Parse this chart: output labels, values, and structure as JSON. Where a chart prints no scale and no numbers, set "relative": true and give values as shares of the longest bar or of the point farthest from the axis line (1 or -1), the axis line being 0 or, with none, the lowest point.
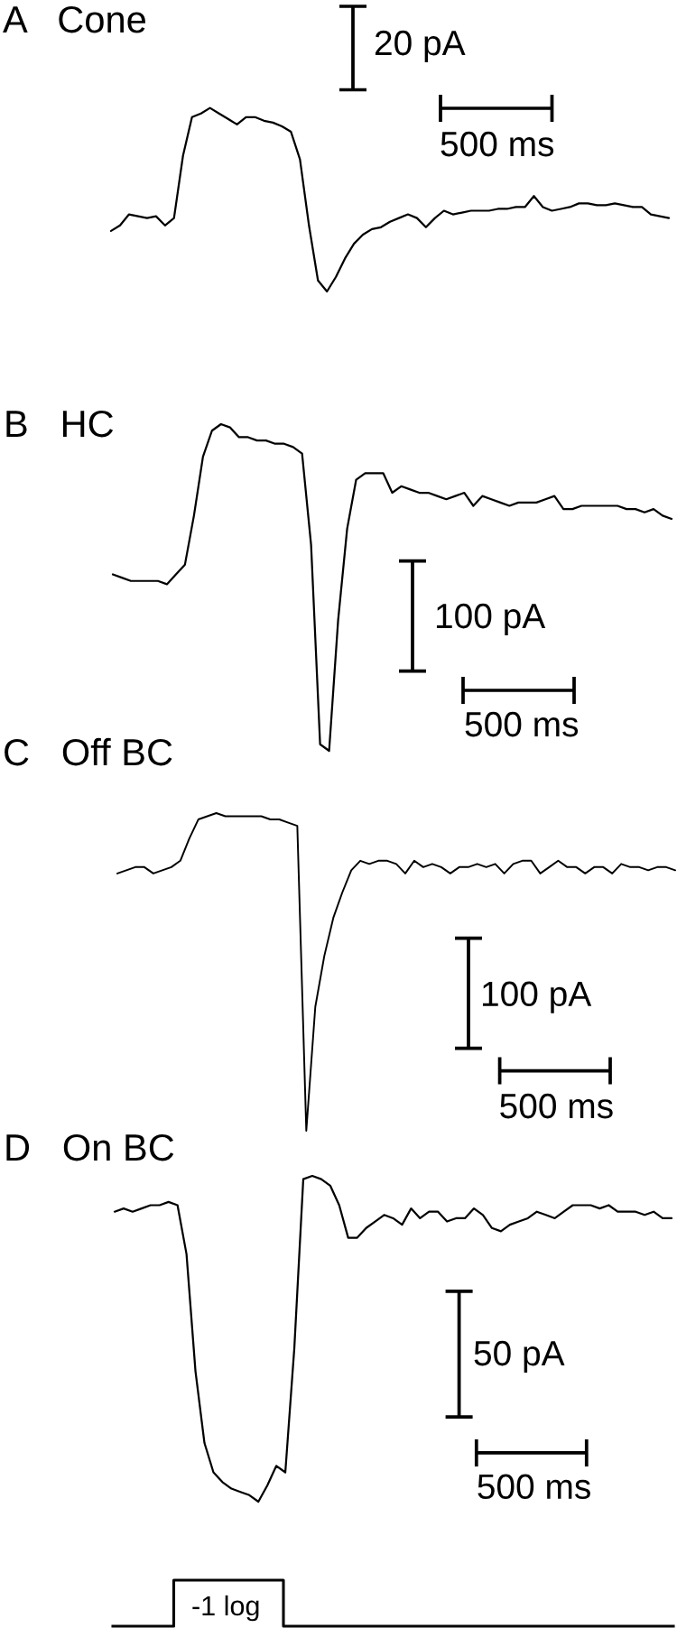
{
  "chart_data": [
    {
      "type": "line",
      "title": "A   Cone",
      "relative": true,
      "color": "#000000",
      "categories": [
        null,
        null,
        null,
        null,
        null,
        null,
        null,
        null,
        null,
        null,
        null,
        null,
        null,
        null,
        null,
        null,
        null,
        null,
        null,
        null,
        null,
        null,
        null,
        null,
        null,
        null,
        null,
        null,
        null,
        null,
        null,
        null,
        null,
        null,
        null,
        null,
        null,
        null,
        null,
        null,
        null,
        null,
        null,
        null,
        null,
        null,
        null,
        null,
        null,
        null,
        null,
        null,
        null,
        null,
        null,
        null,
        null,
        null,
        null,
        null,
        null,
        null,
        null
      ],
      "values": [
        0.33,
        0.36,
        0.42,
        0.41,
        0.4,
        0.41,
        0.36,
        0.4,
        0.74,
        0.95,
        0.97,
        1.0,
        0.97,
        0.94,
        0.91,
        0.95,
        0.95,
        0.93,
        0.92,
        0.9,
        0.87,
        0.72,
        0.36,
        0.06,
        0,
        0.08,
        0.18,
        0.26,
        0.31,
        0.34,
        0.35,
        0.38,
        0.4,
        0.42,
        0.4,
        0.35,
        0.4,
        0.44,
        0.42,
        0.43,
        0.44,
        0.44,
        0.44,
        0.45,
        0.45,
        0.46,
        0.46,
        0.52,
        0.46,
        0.44,
        0.45,
        0.46,
        0.48,
        0.48,
        0.47,
        0.47,
        0.48,
        0.47,
        0.46,
        0.46,
        0.42,
        0.41,
        0.4
      ],
      "annotations": [
        "20 pA",
        "500 ms"
      ]
    },
    {
      "type": "line",
      "title": "B   HC",
      "relative": true,
      "color": "#000000",
      "categories": [
        null,
        null,
        null,
        null,
        null,
        null,
        null,
        null,
        null,
        null,
        null,
        null,
        null,
        null,
        null,
        null,
        null,
        null,
        null,
        null,
        null,
        null,
        null,
        null,
        null,
        null,
        null,
        null,
        null,
        null,
        null,
        null,
        null,
        null,
        null,
        null,
        null,
        null,
        null,
        null,
        null,
        null,
        null,
        null,
        null,
        null,
        null,
        null,
        null,
        null,
        null,
        null,
        null,
        null,
        null,
        null,
        null,
        null,
        null,
        null,
        null,
        null,
        null
      ],
      "values": [
        0.54,
        0.53,
        0.52,
        0.52,
        0.52,
        0.52,
        0.51,
        0.54,
        0.57,
        0.72,
        0.9,
        0.98,
        1.0,
        0.99,
        0.96,
        0.96,
        0.95,
        0.95,
        0.94,
        0.94,
        0.93,
        0.91,
        0.63,
        0.02,
        0,
        0.4,
        0.68,
        0.83,
        0.85,
        0.85,
        0.85,
        0.79,
        0.81,
        0.8,
        0.79,
        0.79,
        0.78,
        0.77,
        0.78,
        0.79,
        0.75,
        0.78,
        0.77,
        0.76,
        0.75,
        0.76,
        0.76,
        0.76,
        0.77,
        0.78,
        0.74,
        0.74,
        0.75,
        0.75,
        0.75,
        0.75,
        0.75,
        0.74,
        0.74,
        0.73,
        0.74,
        0.72,
        0.71
      ],
      "annotations": [
        "100 pA",
        "500 ms"
      ]
    },
    {
      "type": "line",
      "title": "C   Off BC",
      "relative": true,
      "color": "#000000",
      "categories": [
        null,
        null,
        null,
        null,
        null,
        null,
        null,
        null,
        null,
        null,
        null,
        null,
        null,
        null,
        null,
        null,
        null,
        null,
        null,
        null,
        null,
        null,
        null,
        null,
        null,
        null,
        null,
        null,
        null,
        null,
        null,
        null,
        null,
        null,
        null,
        null,
        null,
        null,
        null,
        null,
        null,
        null,
        null,
        null,
        null,
        null,
        null,
        null,
        null,
        null,
        null,
        null,
        null,
        null,
        null,
        null,
        null,
        null,
        null,
        null,
        null,
        null,
        null
      ],
      "values": [
        0.81,
        0.82,
        0.83,
        0.83,
        0.81,
        0.82,
        0.83,
        0.85,
        0.92,
        0.98,
        0.99,
        1.0,
        0.99,
        0.99,
        0.99,
        0.99,
        0.99,
        0.98,
        0.98,
        0.97,
        0.96,
        0,
        0.39,
        0.55,
        0.67,
        0.75,
        0.82,
        0.85,
        0.84,
        0.85,
        0.85,
        0.84,
        0.81,
        0.85,
        0.83,
        0.84,
        0.83,
        0.81,
        0.83,
        0.83,
        0.84,
        0.83,
        0.84,
        0.81,
        0.84,
        0.85,
        0.85,
        0.81,
        0.83,
        0.85,
        0.83,
        0.83,
        0.81,
        0.83,
        0.83,
        0.81,
        0.84,
        0.83,
        0.83,
        0.82,
        0.83,
        0.83,
        0.82
      ],
      "annotations": [
        "100 pA",
        "500 ms"
      ]
    },
    {
      "type": "line",
      "title": "D   On BC",
      "relative": true,
      "color": "#000000",
      "categories": [
        null,
        null,
        null,
        null,
        null,
        null,
        null,
        null,
        null,
        null,
        null,
        null,
        null,
        null,
        null,
        null,
        null,
        null,
        null,
        null,
        null,
        null,
        null,
        null,
        null,
        null,
        null,
        null,
        null,
        null,
        null,
        null,
        null,
        null,
        null,
        null,
        null,
        null,
        null,
        null,
        null,
        null,
        null,
        null,
        null,
        null,
        null,
        null,
        null,
        null,
        null,
        null,
        null,
        null,
        null,
        null,
        null,
        null,
        null,
        null,
        null,
        null,
        null
      ],
      "values": [
        0.89,
        0.9,
        0.89,
        0.9,
        0.91,
        0.91,
        0.92,
        0.91,
        0.76,
        0.4,
        0.18,
        0.09,
        0.06,
        0.04,
        0.03,
        0.02,
        0,
        0.05,
        0.11,
        0.09,
        0.47,
        0.99,
        1.0,
        0.99,
        0.97,
        0.91,
        0.81,
        0.81,
        0.84,
        0.86,
        0.88,
        0.87,
        0.85,
        0.9,
        0.87,
        0.89,
        0.89,
        0.86,
        0.87,
        0.87,
        0.9,
        0.88,
        0.84,
        0.83,
        0.85,
        0.86,
        0.87,
        0.89,
        0.88,
        0.87,
        0.89,
        0.91,
        0.91,
        0.91,
        0.9,
        0.91,
        0.89,
        0.89,
        0.89,
        0.88,
        0.89,
        0.87,
        0.87
      ],
      "annotations": [
        "50 pA",
        "500 ms"
      ]
    },
    {
      "type": "step",
      "relative": true,
      "color": "#000000",
      "categories": [
        null,
        null,
        null,
        null,
        null,
        null,
        null,
        null,
        null,
        null,
        null,
        null,
        null,
        null,
        null,
        null,
        null,
        null,
        null,
        null,
        null,
        null,
        null,
        null,
        null,
        null,
        null,
        null,
        null,
        null,
        null,
        null,
        null,
        null,
        null,
        null,
        null,
        null,
        null,
        null,
        null,
        null,
        null,
        null,
        null,
        null,
        null
      ],
      "values": [
        0,
        0,
        0,
        0,
        0,
        1,
        1,
        1,
        1,
        1,
        1,
        1,
        1,
        1,
        0,
        0,
        0,
        0,
        0,
        0,
        0,
        0,
        0,
        0,
        0,
        0,
        0,
        0,
        0,
        0,
        0,
        0,
        0,
        0,
        0,
        0,
        0,
        0,
        0,
        0,
        0,
        0,
        0,
        0,
        0,
        0,
        0
      ],
      "annotations": [
        "-1 log"
      ]
    }
  ]
}
